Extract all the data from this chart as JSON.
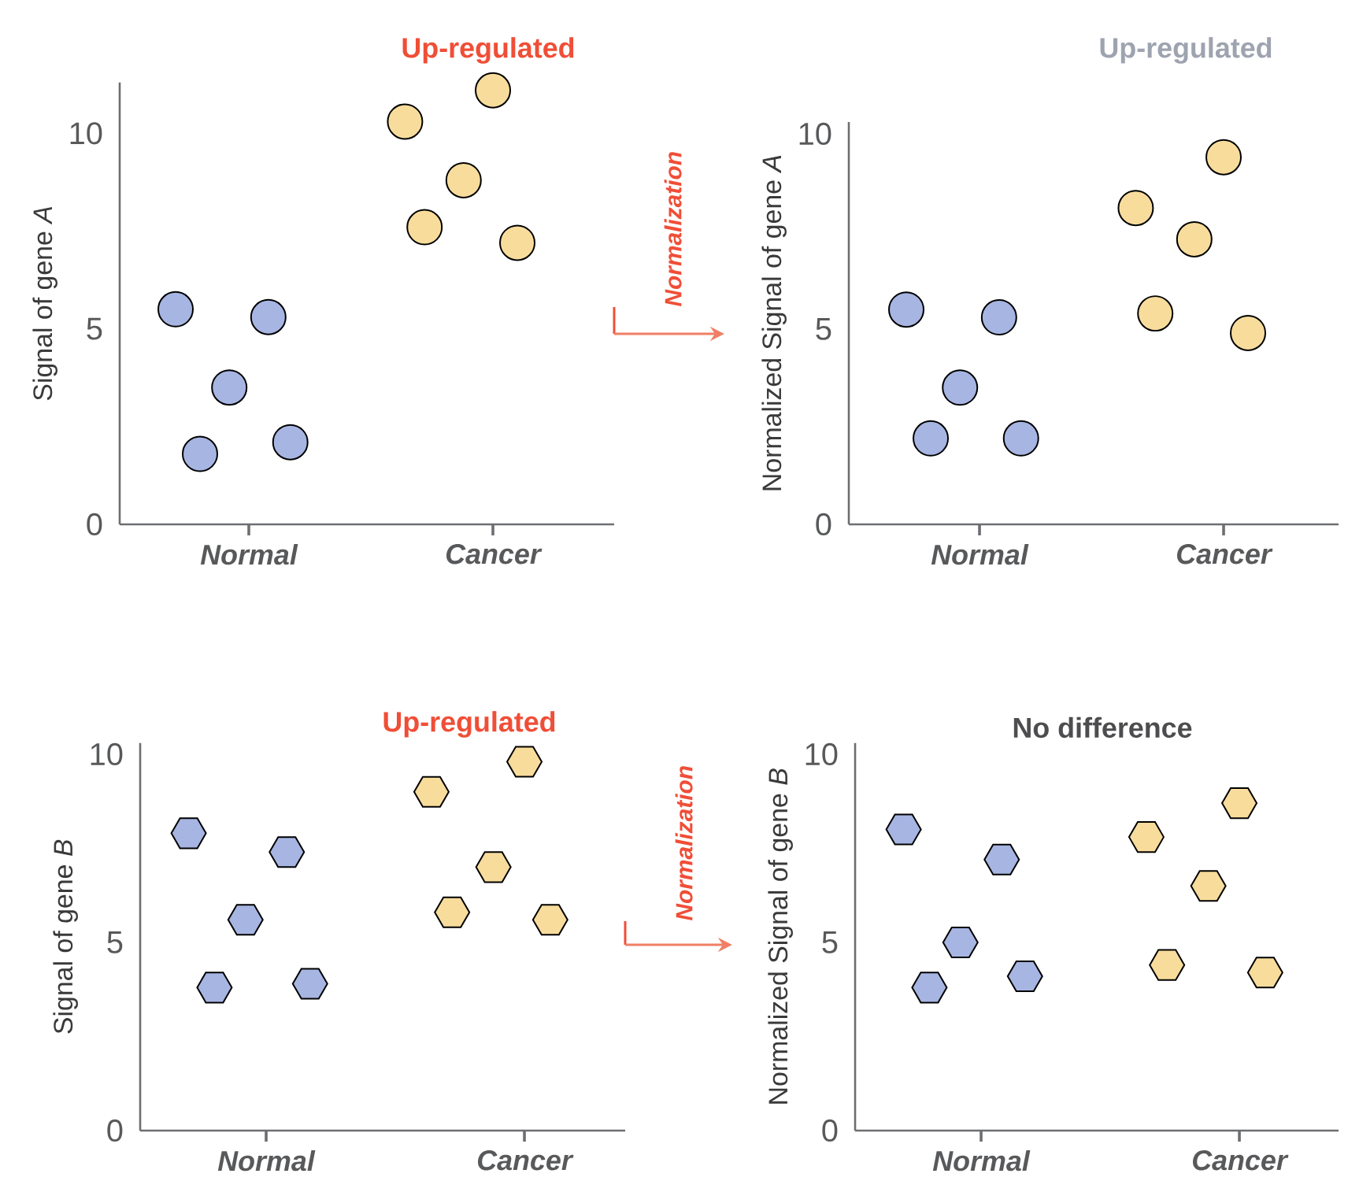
{
  "chart_data": [
    {
      "type": "scatter",
      "title": "Up-regulated",
      "ylabel": "Signal of gene *A*",
      "categories": [
        "Normal",
        "Cancer"
      ],
      "ylim": [
        0,
        11.3
      ],
      "yticks": [
        0,
        5,
        10
      ],
      "marker": "circle",
      "annotations": [
        "Normalization"
      ],
      "series": [
        {
          "color": "#a7b5e2",
          "x": [
            "Normal",
            "Normal",
            "Normal",
            "Normal",
            "Normal"
          ],
          "values": [
            5.5,
            5.3,
            3.5,
            1.8,
            2.1
          ]
        },
        {
          "color": "#f8dc9c",
          "x": [
            "Cancer",
            "Cancer",
            "Cancer",
            "Cancer",
            "Cancer"
          ],
          "values": [
            10.3,
            11.1,
            8.8,
            7.6,
            7.2
          ]
        }
      ]
    },
    {
      "type": "scatter",
      "title": "Up-regulated",
      "ylabel": "Normalized Signal of gene *A*",
      "categories": [
        "Normal",
        "Cancer"
      ],
      "ylim": [
        0,
        10.3
      ],
      "yticks": [
        0,
        5,
        10
      ],
      "marker": "circle",
      "series": [
        {
          "color": "#a7b5e2",
          "x": [
            "Normal",
            "Normal",
            "Normal",
            "Normal",
            "Normal"
          ],
          "values": [
            5.5,
            5.3,
            3.5,
            2.2,
            2.2
          ]
        },
        {
          "color": "#f8dc9c",
          "x": [
            "Cancer",
            "Cancer",
            "Cancer",
            "Cancer",
            "Cancer"
          ],
          "values": [
            8.1,
            9.4,
            7.3,
            5.4,
            4.9
          ]
        }
      ]
    },
    {
      "type": "scatter",
      "title": "Up-regulated",
      "ylabel": "Signal of gene *B*",
      "categories": [
        "Normal",
        "Cancer"
      ],
      "ylim": [
        0,
        10.3
      ],
      "yticks": [
        0,
        5,
        10
      ],
      "annotations": [
        "Normalization"
      ],
      "series": [
        {
          "color": "#a7b5e2",
          "x": [
            "Normal",
            "Normal",
            "Normal",
            "Normal",
            "Normal"
          ],
          "values": [
            7.9,
            7.4,
            5.6,
            3.8,
            3.9
          ]
        },
        {
          "color": "#f8dc9c",
          "x": [
            "Cancer",
            "Cancer",
            "Cancer",
            "Cancer",
            "Cancer"
          ],
          "values": [
            9.0,
            9.8,
            7.0,
            5.8,
            5.6
          ]
        }
      ]
    },
    {
      "type": "scatter",
      "title": "No difference",
      "ylabel": "Normalized Signal of gene *B*",
      "categories": [
        "Normal",
        "Cancer"
      ],
      "ylim": [
        0,
        10.3
      ],
      "yticks": [
        0,
        5,
        10
      ],
      "series": [
        {
          "color": "#a7b5e2",
          "x": [
            "Normal",
            "Normal",
            "Normal",
            "Normal",
            "Normal"
          ],
          "values": [
            8.0,
            7.2,
            5.0,
            3.8,
            4.1
          ]
        },
        {
          "color": "#f8dc9c",
          "x": [
            "Cancer",
            "Cancer",
            "Cancer",
            "Cancer",
            "Cancer"
          ],
          "values": [
            7.8,
            8.7,
            6.5,
            4.4,
            4.2
          ]
        }
      ]
    }
  ]
}
